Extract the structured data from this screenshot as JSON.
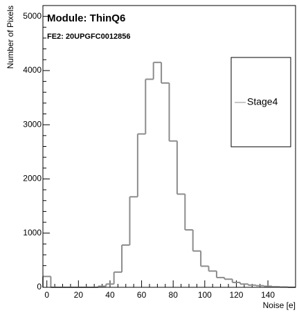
{
  "chart_data": {
    "type": "histogram",
    "title": "Module: ThinQ6",
    "subtitle": "FE2: 20UPGFC0012856",
    "x_label": "Noise [e]",
    "y_label": "Number of Pixels",
    "bins": [
      -2.5,
      2.5,
      7.5,
      12.5,
      17.5,
      22.5,
      27.5,
      32.5,
      37.5,
      42.5,
      47.5,
      52.5,
      57.5,
      62.5,
      67.5,
      72.5,
      77.5,
      82.5,
      87.5,
      92.5,
      97.5,
      102.5,
      107.5,
      112.5,
      117.5,
      122.5,
      127.5,
      132.5,
      137.5,
      142.5,
      147.5,
      152.5,
      157.5
    ],
    "series": [
      {
        "name": "Stage4",
        "color": "#8c8c8c",
        "values": [
          200,
          0,
          0,
          0,
          0,
          0,
          0,
          20,
          60,
          280,
          780,
          1670,
          2830,
          3840,
          4150,
          3770,
          2700,
          1720,
          1060,
          670,
          390,
          300,
          180,
          150,
          90,
          60,
          40,
          30,
          20,
          10,
          5,
          0
        ]
      }
    ],
    "xlim": [
      -2.5,
      157.5
    ],
    "ylim": [
      0,
      5200
    ],
    "xticks": [
      0,
      20,
      40,
      60,
      80,
      100,
      120,
      140
    ],
    "yticks": [
      0,
      1000,
      2000,
      3000,
      4000,
      5000
    ],
    "legend": "right"
  }
}
